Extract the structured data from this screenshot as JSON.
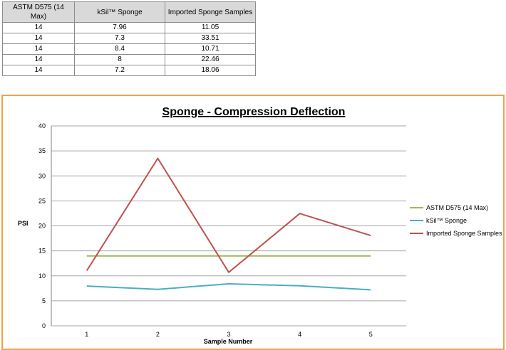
{
  "table": {
    "headers": [
      "ASTM D575 (14 Max)",
      "kSil™ Sponge",
      "Imported Sponge Samples"
    ],
    "rows": [
      [
        "14",
        "7.96",
        "11.05"
      ],
      [
        "14",
        "7.3",
        "33.51"
      ],
      [
        "14",
        "8.4",
        "10.71"
      ],
      [
        "14",
        "8",
        "22.46"
      ],
      [
        "14",
        "7.2",
        "18.06"
      ]
    ]
  },
  "chart_data": {
    "type": "line",
    "title": "Sponge - Compression Deflection",
    "xlabel": "Sample Number",
    "ylabel": "PSI",
    "categories": [
      "1",
      "2",
      "3",
      "4",
      "5"
    ],
    "ylim": [
      0,
      40
    ],
    "yticks": [
      0,
      5,
      10,
      15,
      20,
      25,
      30,
      35,
      40
    ],
    "grid": true,
    "legend_position": "right",
    "series": [
      {
        "name": "ASTM D575 (14 Max)",
        "color": "#9bbb59",
        "values": [
          14,
          14,
          14,
          14,
          14
        ]
      },
      {
        "name": "kSil™ Sponge",
        "color": "#4bacc6",
        "values": [
          7.96,
          7.3,
          8.4,
          8,
          7.2
        ]
      },
      {
        "name": "Imported Sponge Samples",
        "color": "#c0504d",
        "values": [
          11.05,
          33.51,
          10.71,
          22.46,
          18.06
        ]
      }
    ],
    "frame_color": "#f0a34b"
  }
}
